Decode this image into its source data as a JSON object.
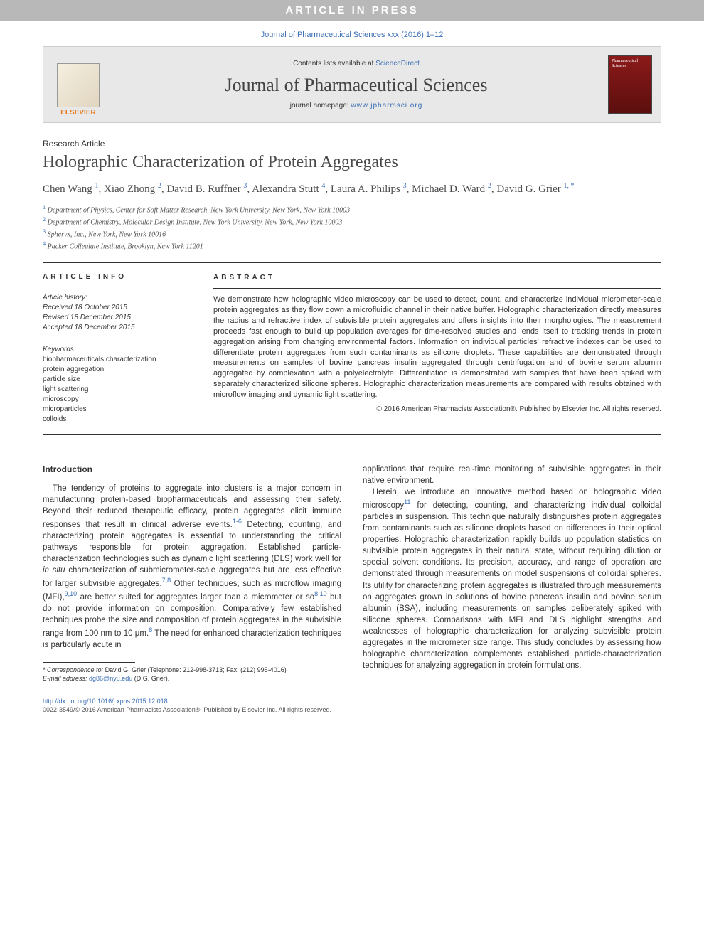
{
  "banner": "ARTICLE IN PRESS",
  "journal_ref": "Journal of Pharmaceutical Sciences xxx (2016) 1–12",
  "header": {
    "contents_prefix": "Contents lists available at ",
    "contents_link": "ScienceDirect",
    "journal_title": "Journal of Pharmaceutical Sciences",
    "homepage_prefix": "journal homepage: ",
    "homepage_link": "www.jpharmsci.org",
    "elsevier": "ELSEVIER",
    "cover_label": "Pharmaceutical Sciences"
  },
  "article": {
    "type": "Research Article",
    "title": "Holographic Characterization of Protein Aggregates",
    "authors_html": "Chen Wang <sup>1</sup>, Xiao Zhong <sup>2</sup>, David B. Ruffner <sup>3</sup>, Alexandra Stutt <sup>4</sup>, Laura A. Philips <sup>3</sup>, Michael D. Ward <sup>2</sup>, David G. Grier <sup class='author-link'>1, *</sup>",
    "affiliations": [
      "Department of Physics, Center for Soft Matter Research, New York University, New York, New York 10003",
      "Department of Chemistry, Molecular Design Institute, New York University, New York, New York 10003",
      "Spheryx, Inc., New York, New York 10016",
      "Packer Collegiate Institute, Brooklyn, New York 11201"
    ]
  },
  "info": {
    "label": "article info",
    "history_label": "Article history:",
    "received": "Received 18 October 2015",
    "revised": "Revised 18 December 2015",
    "accepted": "Accepted 18 December 2015",
    "keywords_label": "Keywords:",
    "keywords": [
      "biopharmaceuticals characterization",
      "protein aggregation",
      "particle size",
      "light scattering",
      "microscopy",
      "microparticles",
      "colloids"
    ]
  },
  "abstract": {
    "label": "abstract",
    "text": "We demonstrate how holographic video microscopy can be used to detect, count, and characterize individual micrometer-scale protein aggregates as they flow down a microfluidic channel in their native buffer. Holographic characterization directly measures the radius and refractive index of subvisible protein aggregates and offers insights into their morphologies. The measurement proceeds fast enough to build up population averages for time-resolved studies and lends itself to tracking trends in protein aggregation arising from changing environmental factors. Information on individual particles' refractive indexes can be used to differentiate protein aggregates from such contaminants as silicone droplets. These capabilities are demonstrated through measurements on samples of bovine pancreas insulin aggregated through centrifugation and of bovine serum albumin aggregated by complexation with a polyelectrolyte. Differentiation is demonstrated with samples that have been spiked with separately characterized silicone spheres. Holographic characterization measurements are compared with results obtained with microflow imaging and dynamic light scattering.",
    "copyright": "© 2016 American Pharmacists Association®. Published by Elsevier Inc. All rights reserved."
  },
  "body": {
    "heading": "Introduction",
    "p1": "The tendency of proteins to aggregate into clusters is a major concern in manufacturing protein-based biopharmaceuticals and assessing their safety. Beyond their reduced therapeutic efficacy, protein aggregates elicit immune responses that result in clinical adverse events.<sup>1-6</sup> Detecting, counting, and characterizing protein aggregates is essential to understanding the critical pathways responsible for protein aggregation. Established particle-characterization technologies such as dynamic light scattering (DLS) work well for <i>in situ</i> characterization of submicrometer-scale aggregates but are less effective for larger subvisible aggregates.<sup>7,8</sup> Other techniques, such as microflow imaging (MFI),<sup>9,10</sup> are better suited for aggregates larger than a micrometer or so<sup>8,10</sup> but do not provide information on composition. Comparatively few established techniques probe the size and composition of protein aggregates in the subvisible range from 100 nm to 10 μm.<sup>8</sup> The need for enhanced characterization techniques is particularly acute in",
    "p2": "applications that require real-time monitoring of subvisible aggregates in their native environment.",
    "p3": "Herein, we introduce an innovative method based on holographic video microscopy<sup>11</sup> for detecting, counting, and characterizing individual colloidal particles in suspension. This technique naturally distinguishes protein aggregates from contaminants such as silicone droplets based on differences in their optical properties. Holographic characterization rapidly builds up population statistics on subvisible protein aggregates in their natural state, without requiring dilution or special solvent conditions. Its precision, accuracy, and range of operation are demonstrated through measurements on model suspensions of colloidal spheres. Its utility for characterizing protein aggregates is illustrated through measurements on aggregates grown in solutions of bovine pancreas insulin and bovine serum albumin (BSA), including measurements on samples deliberately spiked with silicone spheres. Comparisons with MFI and DLS highlight strengths and weaknesses of holographic characterization for analyzing subvisible protein aggregates in the micrometer size range. This study concludes by assessing how holographic characterization complements established particle-characterization techniques for analyzing aggregation in protein formulations."
  },
  "footnotes": {
    "correspondence_label": "* Correspondence to:",
    "correspondence": " David G. Grier (Telephone: 212-998-3713; Fax: (212) 995-4016)",
    "email_label": "E-mail address: ",
    "email": "dg86@nyu.edu",
    "email_who": " (D.G. Grier)."
  },
  "footer": {
    "doi": "http://dx.doi.org/10.1016/j.xphs.2015.12.018",
    "line2": "0022-3549/© 2016 American Pharmacists Association®. Published by Elsevier Inc. All rights reserved."
  },
  "colors": {
    "link": "#3b6fb5",
    "banner_bg": "#b8b8b8",
    "elsevier": "#e67817",
    "cover_bg": "#8b1a1a"
  }
}
